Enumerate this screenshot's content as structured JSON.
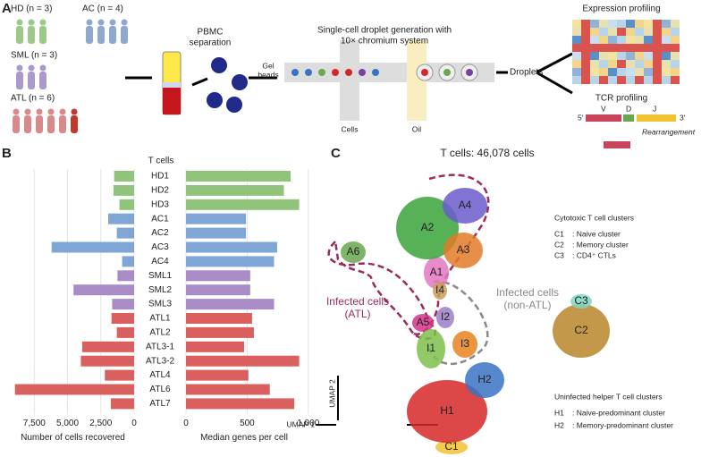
{
  "panel_a": {
    "label": "A",
    "groups": [
      "HD (n = 3)",
      "AC (n = 4)",
      "SML (n = 3)",
      "ATL (n = 6)"
    ],
    "pbmc": [
      "PBMC",
      "separation"
    ],
    "droplet_title": [
      "Single-cell droplet generation with",
      "10× chromium system"
    ],
    "gel_beads": [
      "Gel",
      "beads"
    ],
    "cells": "Cells",
    "oil": "Oil",
    "droplets": "Droplets",
    "expression": "Expression profiling",
    "tcr": "TCR profiling",
    "segments": [
      "V",
      "D",
      "J"
    ],
    "ends": [
      "5′",
      "3′"
    ],
    "rearrangement": "Rearrangement"
  },
  "panel_b": {
    "label": "B",
    "header": "T cells"
  },
  "chart_data": [
    {
      "type": "bar",
      "orientation": "horizontal",
      "reversed": true,
      "xlabel": "Number of cells recovered",
      "categories": [
        "HD1",
        "HD2",
        "HD3",
        "AC1",
        "AC2",
        "AC3",
        "AC4",
        "SML1",
        "SML2",
        "SML3",
        "ATL1",
        "ATL2",
        "ATL3-1",
        "ATL3-2",
        "ATL4",
        "ATL6",
        "ATL7"
      ],
      "values": [
        1500,
        1550,
        1100,
        1950,
        1300,
        6200,
        900,
        1250,
        4550,
        1650,
        1700,
        1300,
        3900,
        4000,
        2200,
        8950,
        1750
      ],
      "colors": [
        "#8fc47a",
        "#8fc47a",
        "#8fc47a",
        "#7fa6d4",
        "#7fa6d4",
        "#7fa6d4",
        "#7fa6d4",
        "#a98bc6",
        "#a98bc6",
        "#a98bc6",
        "#d9605f",
        "#d9605f",
        "#d9605f",
        "#d9605f",
        "#d9605f",
        "#d9605f",
        "#d9605f"
      ],
      "xlim": [
        0,
        9200
      ],
      "xticks": [
        {
          "value": 7500,
          "label": "7,500"
        },
        {
          "value": 5000,
          "label": "5,000"
        },
        {
          "value": 2500,
          "label": "2,500"
        },
        0
      ],
      "grid": true
    },
    {
      "type": "bar",
      "orientation": "horizontal",
      "xlabel": "Median genes per cell",
      "values": [
        855,
        800,
        925,
        490,
        490,
        745,
        720,
        525,
        525,
        720,
        540,
        555,
        475,
        925,
        510,
        685,
        885
      ],
      "colors": [
        "#8fc47a",
        "#8fc47a",
        "#8fc47a",
        "#7fa6d4",
        "#7fa6d4",
        "#7fa6d4",
        "#7fa6d4",
        "#a98bc6",
        "#a98bc6",
        "#a98bc6",
        "#d9605f",
        "#d9605f",
        "#d9605f",
        "#d9605f",
        "#d9605f",
        "#d9605f",
        "#d9605f"
      ],
      "xlim": [
        0,
        950
      ],
      "xticks": [
        0,
        500,
        {
          "value": 1000,
          "label": "1,000"
        }
      ],
      "grid": true
    }
  ],
  "panel_c": {
    "label": "C",
    "title": "T cells: 46,078 cells",
    "clusters": [
      "A1",
      "A2",
      "A3",
      "A4",
      "A5",
      "A6",
      "I1",
      "I2",
      "I3",
      "I4",
      "C1",
      "C2",
      "C3",
      "H1",
      "H2"
    ],
    "infected_atl": [
      "Infected cells",
      "(ATL)"
    ],
    "infected_non_atl": [
      "Infected cells",
      "(non-ATL)"
    ],
    "cyto_title": "Cytotoxic T cell clusters",
    "cyto_rows": [
      [
        "C1",
        ": Naive cluster"
      ],
      [
        "C2",
        ": Memory cluster"
      ],
      [
        "C3",
        ": CD4⁺ CTLs"
      ]
    ],
    "helper_title": "Uninfected helper T cell clusters",
    "helper_rows": [
      [
        "H1",
        ": Naive-predominant cluster"
      ],
      [
        "H2",
        ": Memory-predominant cluster"
      ]
    ],
    "umap2": "UMAP 2",
    "umap1": "UMAP 1"
  }
}
